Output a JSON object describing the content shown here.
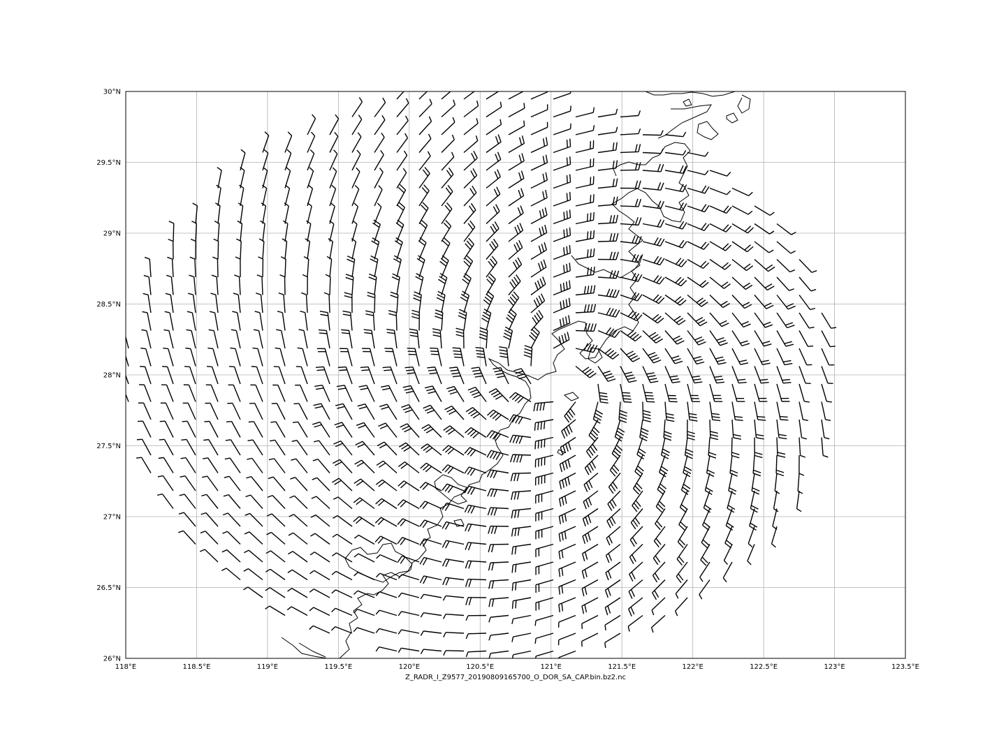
{
  "map": {
    "caption": "Z_RADR_I_Z9577_20190809165700_O_DOR_SA_CAP.bin.bz2.nc",
    "lon_range": [
      118.0,
      123.5
    ],
    "lat_range": [
      26.0,
      30.0
    ],
    "grid": true,
    "x_ticks": [
      {
        "value": 118.0,
        "label": "118°E"
      },
      {
        "value": 118.5,
        "label": "118.5°E"
      },
      {
        "value": 119.0,
        "label": "119°E"
      },
      {
        "value": 119.5,
        "label": "119.5°E"
      },
      {
        "value": 120.0,
        "label": "120°E"
      },
      {
        "value": 120.5,
        "label": "120.5°E"
      },
      {
        "value": 121.0,
        "label": "121°E"
      },
      {
        "value": 121.5,
        "label": "121.5°E"
      },
      {
        "value": 122.0,
        "label": "122°E"
      },
      {
        "value": 122.5,
        "label": "122.5°E"
      },
      {
        "value": 123.0,
        "label": "123°E"
      },
      {
        "value": 123.5,
        "label": "123.5°E"
      }
    ],
    "y_ticks": [
      {
        "value": 26.0,
        "label": "26°N"
      },
      {
        "value": 26.5,
        "label": "26.5°N"
      },
      {
        "value": 27.0,
        "label": "27°N"
      },
      {
        "value": 27.5,
        "label": "27.5°N"
      },
      {
        "value": 28.0,
        "label": "28°N"
      },
      {
        "value": 28.5,
        "label": "28.5°N"
      },
      {
        "value": 29.0,
        "label": "29°N"
      },
      {
        "value": 29.5,
        "label": "29.5°N"
      },
      {
        "value": 30.0,
        "label": "30°N"
      }
    ],
    "layers": {
      "wind_barbs": "wind-barbs",
      "coastline": "coastline"
    },
    "colors": {
      "barb": "#000000",
      "coast": "#000000",
      "grid": "#b0b0b0"
    }
  }
}
